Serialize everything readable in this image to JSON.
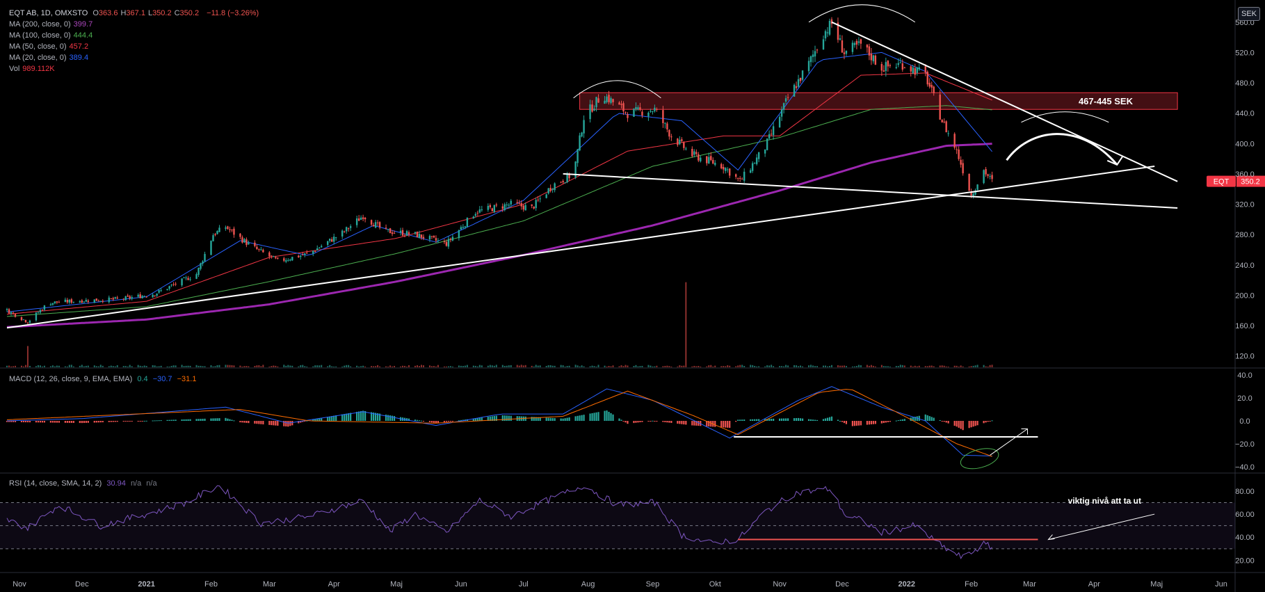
{
  "header": {
    "symbol": "EQT AB, 1D, OMXSTO",
    "ohlc": [
      {
        "label": "O",
        "value": "363.6"
      },
      {
        "label": "H",
        "value": "367.1"
      },
      {
        "label": "L",
        "value": "350.2"
      },
      {
        "label": "C",
        "value": "350.2"
      }
    ],
    "change": "−11.8 (−3.26%)",
    "currency_button": "SEK"
  },
  "indicators": [
    {
      "label": "MA (200, close, 0)",
      "value": "399.7",
      "color": "#ab47bc"
    },
    {
      "label": "MA (100, close, 0)",
      "value": "444.4",
      "color": "#4caf50"
    },
    {
      "label": "MA (50, close, 0)",
      "value": "457.2",
      "color": "#f23645"
    },
    {
      "label": "MA (20, close, 0)",
      "value": "389.4",
      "color": "#2962ff"
    },
    {
      "label": "Vol",
      "value": "989.112K",
      "color": "#f23645"
    }
  ],
  "macd_legend": {
    "label": "MACD (12, 26, close, 9, EMA, EMA)",
    "values": [
      "0.4",
      "−30.7",
      "−31.1"
    ],
    "colors": [
      "#26a69a",
      "#2962ff",
      "#ff6d00"
    ]
  },
  "rsi_legend": {
    "label": "RSI (14, close, SMA, 14, 2)",
    "values": [
      "30.94",
      "n/a",
      "n/a"
    ],
    "colors": [
      "#7e57c2",
      "#787b86",
      "#787b86"
    ]
  },
  "colors": {
    "up": "#26a69a",
    "down": "#ef5350",
    "ma200": "#9c27b0",
    "ma100": "#4caf50",
    "ma50": "#f23645",
    "ma20": "#2962ff",
    "macd": "#2962ff",
    "signal": "#ff6d00",
    "rsi": "#7e57c2",
    "zone": "#f23645",
    "background": "#000000"
  },
  "annotations": {
    "zone_label": "467-445 SEK",
    "rsi_note": "viktig nivå att ta ut",
    "price_tag_symbol": "EQT",
    "price_tag_value": "350.2"
  },
  "chart_data": [
    {
      "type": "candlestick",
      "title": "EQT AB, 1D, OMXSTO",
      "ylabel": "SEK",
      "ylim": [
        105,
        580
      ],
      "y_ticks": [
        "560.0",
        "520.0",
        "480.0",
        "440.0",
        "400.0",
        "360.0",
        "320.0",
        "280.0",
        "240.0",
        "200.0",
        "160.0",
        "120.0"
      ],
      "x_ticks": [
        "Nov",
        "Dec",
        "2021",
        "Feb",
        "Mar",
        "Apr",
        "Maj",
        "Jun",
        "Jul",
        "Aug",
        "Sep",
        "Okt",
        "Nov",
        "Dec",
        "2022",
        "Feb",
        "Mar",
        "Apr",
        "Maj",
        "Jun"
      ],
      "x_range": [
        "2020-10-26",
        "2022-06-03"
      ],
      "price_path": [
        [
          "2020-10-26",
          180
        ],
        [
          "2020-11-05",
          165
        ],
        [
          "2020-11-15",
          190
        ],
        [
          "2020-12-01",
          193
        ],
        [
          "2020-12-20",
          195
        ],
        [
          "2021-01-05",
          202
        ],
        [
          "2021-01-25",
          228
        ],
        [
          "2021-02-02",
          280
        ],
        [
          "2021-02-08",
          290
        ],
        [
          "2021-02-20",
          265
        ],
        [
          "2021-03-05",
          245
        ],
        [
          "2021-03-20",
          255
        ],
        [
          "2021-04-05",
          282
        ],
        [
          "2021-04-15",
          305
        ],
        [
          "2021-04-25",
          285
        ],
        [
          "2021-05-10",
          280
        ],
        [
          "2021-05-25",
          268
        ],
        [
          "2021-06-08",
          310
        ],
        [
          "2021-06-25",
          320
        ],
        [
          "2021-07-05",
          315
        ],
        [
          "2021-07-15",
          345
        ],
        [
          "2021-07-25",
          360
        ],
        [
          "2021-07-30",
          435
        ],
        [
          "2021-08-08",
          465
        ],
        [
          "2021-08-20",
          440
        ],
        [
          "2021-09-02",
          445
        ],
        [
          "2021-09-10",
          410
        ],
        [
          "2021-09-20",
          385
        ],
        [
          "2021-10-05",
          370
        ],
        [
          "2021-10-13",
          350
        ],
        [
          "2021-10-25",
          395
        ],
        [
          "2021-11-05",
          460
        ],
        [
          "2021-11-15",
          505
        ],
        [
          "2021-11-22",
          545
        ],
        [
          "2021-11-26",
          558
        ],
        [
          "2021-12-02",
          520
        ],
        [
          "2021-12-10",
          530
        ],
        [
          "2021-12-20",
          500
        ],
        [
          "2021-12-30",
          505
        ],
        [
          "2022-01-10",
          490
        ],
        [
          "2022-01-18",
          430
        ],
        [
          "2022-01-25",
          390
        ],
        [
          "2022-02-01",
          332
        ],
        [
          "2022-02-07",
          365
        ],
        [
          "2022-02-11",
          350
        ]
      ],
      "series": [
        {
          "name": "MA (200, close, 0)",
          "points": [
            [
              "2020-10-26",
              158
            ],
            [
              "2021-01-01",
              168
            ],
            [
              "2021-03-01",
              188
            ],
            [
              "2021-05-01",
              218
            ],
            [
              "2021-07-01",
              253
            ],
            [
              "2021-09-01",
              292
            ],
            [
              "2021-11-01",
              338
            ],
            [
              "2021-12-15",
              375
            ],
            [
              "2022-01-20",
              397
            ],
            [
              "2022-02-11",
              399.7
            ]
          ]
        },
        {
          "name": "MA (100, close, 0)",
          "points": [
            [
              "2020-10-26",
              172
            ],
            [
              "2021-01-01",
              185
            ],
            [
              "2021-03-01",
              218
            ],
            [
              "2021-05-01",
              255
            ],
            [
              "2021-07-01",
              298
            ],
            [
              "2021-09-01",
              370
            ],
            [
              "2021-11-01",
              408
            ],
            [
              "2021-12-15",
              445
            ],
            [
              "2022-01-20",
              450
            ],
            [
              "2022-02-11",
              444.4
            ]
          ]
        },
        {
          "name": "MA (50, close, 0)",
          "points": [
            [
              "2020-10-26",
              175
            ],
            [
              "2021-01-01",
              192
            ],
            [
              "2021-03-01",
              250
            ],
            [
              "2021-05-01",
              275
            ],
            [
              "2021-07-01",
              320
            ],
            [
              "2021-08-20",
              390
            ],
            [
              "2021-10-05",
              410
            ],
            [
              "2021-11-01",
              410
            ],
            [
              "2021-12-10",
              490
            ],
            [
              "2022-01-10",
              493
            ],
            [
              "2022-02-11",
              457.2
            ]
          ]
        },
        {
          "name": "MA (20, close, 0)",
          "points": [
            [
              "2020-10-26",
              178
            ],
            [
              "2021-01-01",
              198
            ],
            [
              "2021-02-15",
              272
            ],
            [
              "2021-03-20",
              252
            ],
            [
              "2021-04-20",
              292
            ],
            [
              "2021-05-20",
              270
            ],
            [
              "2021-07-01",
              325
            ],
            [
              "2021-08-15",
              440
            ],
            [
              "2021-09-15",
              430
            ],
            [
              "2021-10-12",
              365
            ],
            [
              "2021-11-20",
              510
            ],
            [
              "2021-12-20",
              520
            ],
            [
              "2022-01-10",
              495
            ],
            [
              "2022-02-11",
              389.4
            ]
          ]
        }
      ],
      "volume": {
        "typical": 30000,
        "spikes": [
          [
            "2020-11-05",
            400000
          ],
          [
            "2021-09-17",
            1600000
          ]
        ],
        "axis_max": 1700000
      }
    },
    {
      "type": "line",
      "title": "MACD (12, 26, close, 9, EMA, EMA)",
      "ylim": [
        -45,
        45
      ],
      "y_ticks": [
        "40.0",
        "20.0",
        "0.0",
        "−20.0",
        "−40.0"
      ],
      "series": [
        {
          "name": "MACD",
          "points": [
            [
              "2020-10-26",
              0
            ],
            [
              "2020-12-01",
              2
            ],
            [
              "2021-02-08",
              12
            ],
            [
              "2021-03-10",
              -2
            ],
            [
              "2021-04-15",
              8
            ],
            [
              "2021-05-20",
              -4
            ],
            [
              "2021-06-20",
              6
            ],
            [
              "2021-07-20",
              6
            ],
            [
              "2021-08-10",
              28
            ],
            [
              "2021-09-01",
              18
            ],
            [
              "2021-10-08",
              -15
            ],
            [
              "2021-11-10",
              18
            ],
            [
              "2021-11-26",
              30
            ],
            [
              "2021-12-20",
              12
            ],
            [
              "2022-01-10",
              0
            ],
            [
              "2022-01-28",
              -30
            ],
            [
              "2022-02-11",
              -30.7
            ]
          ]
        },
        {
          "name": "Signal",
          "points": [
            [
              "2020-10-26",
              1
            ],
            [
              "2021-02-15",
              10
            ],
            [
              "2021-03-20",
              0
            ],
            [
              "2021-05-20",
              -2
            ],
            [
              "2021-07-20",
              4
            ],
            [
              "2021-08-20",
              26
            ],
            [
              "2021-09-20",
              5
            ],
            [
              "2021-10-12",
              -12
            ],
            [
              "2021-11-20",
              25
            ],
            [
              "2021-12-05",
              28
            ],
            [
              "2021-12-30",
              5
            ],
            [
              "2022-01-25",
              -20
            ],
            [
              "2022-02-11",
              -31.1
            ]
          ]
        }
      ],
      "histogram_value": 0.4
    },
    {
      "type": "line",
      "title": "RSI (14, close, SMA, 14, 2)",
      "ylim": [
        10,
        95
      ],
      "y_ticks": [
        "80.00",
        "60.00",
        "40.00",
        "20.00"
      ],
      "bands": [
        70,
        50,
        30
      ],
      "series": [
        {
          "name": "RSI",
          "points": [
            [
              "2020-10-26",
              55
            ],
            [
              "2020-11-05",
              48
            ],
            [
              "2020-11-20",
              68
            ],
            [
              "2020-12-10",
              50
            ],
            [
              "2021-01-05",
              62
            ],
            [
              "2021-01-20",
              70
            ],
            [
              "2021-02-05",
              85
            ],
            [
              "2021-02-25",
              52
            ],
            [
              "2021-03-20",
              58
            ],
            [
              "2021-04-15",
              72
            ],
            [
              "2021-04-28",
              45
            ],
            [
              "2021-05-10",
              60
            ],
            [
              "2021-05-25",
              44
            ],
            [
              "2021-06-10",
              72
            ],
            [
              "2021-06-25",
              58
            ],
            [
              "2021-07-10",
              70
            ],
            [
              "2021-07-30",
              85
            ],
            [
              "2021-08-15",
              68
            ],
            [
              "2021-09-02",
              70
            ],
            [
              "2021-09-15",
              42
            ],
            [
              "2021-09-28",
              35
            ],
            [
              "2021-10-12",
              38
            ],
            [
              "2021-10-25",
              62
            ],
            [
              "2021-11-08",
              78
            ],
            [
              "2021-11-25",
              82
            ],
            [
              "2021-12-03",
              58
            ],
            [
              "2021-12-10",
              55
            ],
            [
              "2021-12-20",
              44
            ],
            [
              "2022-01-05",
              50
            ],
            [
              "2022-01-18",
              32
            ],
            [
              "2022-01-28",
              22
            ],
            [
              "2022-02-07",
              34
            ],
            [
              "2022-02-11",
              30.94
            ]
          ]
        }
      ]
    }
  ]
}
